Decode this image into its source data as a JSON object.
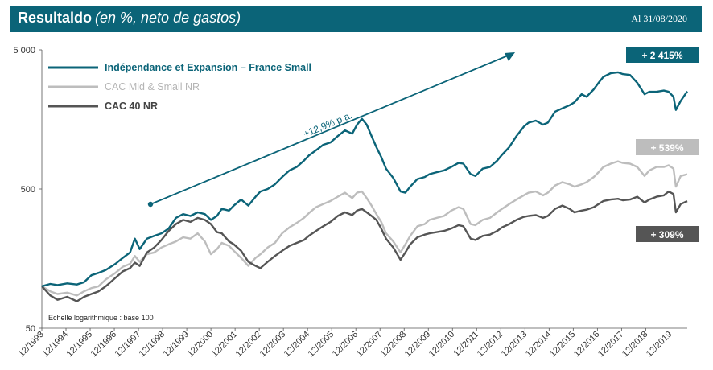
{
  "header": {
    "title": "Resultaldo",
    "subtitle": "(en %, neto de gastos)",
    "date": "Al 31/08/2020"
  },
  "colors": {
    "header_bg": "#0b6478",
    "fund": "#0b6478",
    "midsmall": "#bdbdbd",
    "cac40": "#555555"
  },
  "chart_data": {
    "type": "line",
    "y_scale": "log",
    "ylim": [
      50,
      5000
    ],
    "y_ticks": [
      {
        "value": 50,
        "label": "50"
      },
      {
        "value": 500,
        "label": "500"
      },
      {
        "value": 5000,
        "label": "5 000"
      }
    ],
    "x_tick_labels": [
      "12/1993",
      "12/1994",
      "12/1995",
      "12/1996",
      "12/1997",
      "12/1998",
      "12/1999",
      "12/2000",
      "12/2001",
      "12/2002",
      "12/2003",
      "12/2004",
      "12/2005",
      "12/2006",
      "12/2007",
      "12/2008",
      "12/2009",
      "12/2010",
      "12/2011",
      "12/2012",
      "12/2013",
      "12/2014",
      "12/2015",
      "12/2016",
      "12/2017",
      "12/2018",
      "12/2019"
    ],
    "x_range": [
      1993.95,
      2020.67
    ],
    "note": "Echelle logarithmique : base 100",
    "annotation": "+12,9% p.a.",
    "series": [
      {
        "name": "Indépendance et Expansion – France Small",
        "color": "#0b6478",
        "badge": "+ 2 415%",
        "points": [
          [
            1993.95,
            100
          ],
          [
            1994.3,
            104
          ],
          [
            1994.6,
            102
          ],
          [
            1995.0,
            105
          ],
          [
            1995.4,
            103
          ],
          [
            1995.7,
            107
          ],
          [
            1996.0,
            120
          ],
          [
            1996.3,
            125
          ],
          [
            1996.6,
            131
          ],
          [
            1997.0,
            145
          ],
          [
            1997.3,
            160
          ],
          [
            1997.6,
            175
          ],
          [
            1997.8,
            220
          ],
          [
            1998.0,
            185
          ],
          [
            1998.3,
            220
          ],
          [
            1998.6,
            230
          ],
          [
            1998.9,
            240
          ],
          [
            1999.2,
            260
          ],
          [
            1999.5,
            310
          ],
          [
            1999.8,
            330
          ],
          [
            2000.1,
            320
          ],
          [
            2000.4,
            340
          ],
          [
            2000.7,
            330
          ],
          [
            2000.95,
            300
          ],
          [
            2001.2,
            320
          ],
          [
            2001.4,
            360
          ],
          [
            2001.7,
            350
          ],
          [
            2001.9,
            380
          ],
          [
            2002.2,
            420
          ],
          [
            2002.5,
            380
          ],
          [
            2002.8,
            440
          ],
          [
            2003.0,
            480
          ],
          [
            2003.3,
            500
          ],
          [
            2003.6,
            540
          ],
          [
            2003.9,
            610
          ],
          [
            2004.2,
            680
          ],
          [
            2004.5,
            720
          ],
          [
            2004.8,
            800
          ],
          [
            2005.0,
            870
          ],
          [
            2005.3,
            950
          ],
          [
            2005.6,
            1040
          ],
          [
            2005.9,
            1080
          ],
          [
            2006.2,
            1200
          ],
          [
            2006.5,
            1320
          ],
          [
            2006.8,
            1250
          ],
          [
            2007.0,
            1450
          ],
          [
            2007.2,
            1600
          ],
          [
            2007.4,
            1450
          ],
          [
            2007.6,
            1200
          ],
          [
            2007.8,
            1000
          ],
          [
            2008.0,
            850
          ],
          [
            2008.2,
            700
          ],
          [
            2008.5,
            600
          ],
          [
            2008.8,
            480
          ],
          [
            2009.0,
            470
          ],
          [
            2009.2,
            520
          ],
          [
            2009.5,
            590
          ],
          [
            2009.8,
            610
          ],
          [
            2010.0,
            640
          ],
          [
            2010.3,
            660
          ],
          [
            2010.6,
            680
          ],
          [
            2010.9,
            720
          ],
          [
            2011.2,
            770
          ],
          [
            2011.4,
            760
          ],
          [
            2011.7,
            640
          ],
          [
            2011.9,
            620
          ],
          [
            2012.2,
            700
          ],
          [
            2012.5,
            720
          ],
          [
            2012.8,
            800
          ],
          [
            2013.0,
            880
          ],
          [
            2013.3,
            1000
          ],
          [
            2013.6,
            1200
          ],
          [
            2013.9,
            1400
          ],
          [
            2014.1,
            1500
          ],
          [
            2014.4,
            1550
          ],
          [
            2014.7,
            1450
          ],
          [
            2014.9,
            1500
          ],
          [
            2015.2,
            1800
          ],
          [
            2015.5,
            1900
          ],
          [
            2015.8,
            2000
          ],
          [
            2016.0,
            2100
          ],
          [
            2016.3,
            2400
          ],
          [
            2016.5,
            2300
          ],
          [
            2016.8,
            2600
          ],
          [
            2017.0,
            2900
          ],
          [
            2017.2,
            3200
          ],
          [
            2017.5,
            3400
          ],
          [
            2017.8,
            3450
          ],
          [
            2018.0,
            3350
          ],
          [
            2018.3,
            3300
          ],
          [
            2018.6,
            2900
          ],
          [
            2018.9,
            2400
          ],
          [
            2019.1,
            2500
          ],
          [
            2019.4,
            2500
          ],
          [
            2019.7,
            2550
          ],
          [
            2019.9,
            2500
          ],
          [
            2020.1,
            2300
          ],
          [
            2020.2,
            1850
          ],
          [
            2020.4,
            2150
          ],
          [
            2020.67,
            2515
          ]
        ]
      },
      {
        "name": "CAC Mid & Small NR",
        "color": "#bdbdbd",
        "badge": "+ 539%",
        "points": [
          [
            1993.95,
            100
          ],
          [
            1994.3,
            92
          ],
          [
            1994.6,
            88
          ],
          [
            1995.0,
            90
          ],
          [
            1995.4,
            86
          ],
          [
            1995.7,
            92
          ],
          [
            1996.0,
            97
          ],
          [
            1996.3,
            100
          ],
          [
            1996.6,
            112
          ],
          [
            1997.0,
            125
          ],
          [
            1997.3,
            138
          ],
          [
            1997.6,
            145
          ],
          [
            1997.8,
            165
          ],
          [
            1998.0,
            150
          ],
          [
            1998.3,
            170
          ],
          [
            1998.6,
            175
          ],
          [
            1998.9,
            190
          ],
          [
            1999.2,
            200
          ],
          [
            1999.5,
            210
          ],
          [
            1999.8,
            225
          ],
          [
            2000.1,
            220
          ],
          [
            2000.4,
            240
          ],
          [
            2000.7,
            210
          ],
          [
            2000.95,
            170
          ],
          [
            2001.2,
            185
          ],
          [
            2001.4,
            205
          ],
          [
            2001.7,
            195
          ],
          [
            2001.9,
            180
          ],
          [
            2002.2,
            160
          ],
          [
            2002.5,
            140
          ],
          [
            2002.8,
            160
          ],
          [
            2003.0,
            170
          ],
          [
            2003.3,
            190
          ],
          [
            2003.6,
            205
          ],
          [
            2003.9,
            240
          ],
          [
            2004.2,
            265
          ],
          [
            2004.5,
            285
          ],
          [
            2004.8,
            310
          ],
          [
            2005.0,
            335
          ],
          [
            2005.3,
            370
          ],
          [
            2005.6,
            390
          ],
          [
            2005.9,
            410
          ],
          [
            2006.2,
            440
          ],
          [
            2006.5,
            470
          ],
          [
            2006.8,
            430
          ],
          [
            2007.0,
            470
          ],
          [
            2007.2,
            480
          ],
          [
            2007.4,
            430
          ],
          [
            2007.6,
            380
          ],
          [
            2007.8,
            330
          ],
          [
            2008.0,
            290
          ],
          [
            2008.2,
            240
          ],
          [
            2008.5,
            210
          ],
          [
            2008.8,
            175
          ],
          [
            2009.0,
            200
          ],
          [
            2009.2,
            230
          ],
          [
            2009.5,
            270
          ],
          [
            2009.8,
            280
          ],
          [
            2010.0,
            300
          ],
          [
            2010.3,
            310
          ],
          [
            2010.6,
            320
          ],
          [
            2010.9,
            350
          ],
          [
            2011.2,
            370
          ],
          [
            2011.4,
            360
          ],
          [
            2011.7,
            280
          ],
          [
            2011.9,
            275
          ],
          [
            2012.2,
            300
          ],
          [
            2012.5,
            310
          ],
          [
            2012.8,
            340
          ],
          [
            2013.0,
            360
          ],
          [
            2013.3,
            390
          ],
          [
            2013.6,
            420
          ],
          [
            2013.9,
            450
          ],
          [
            2014.1,
            470
          ],
          [
            2014.4,
            480
          ],
          [
            2014.7,
            450
          ],
          [
            2014.9,
            470
          ],
          [
            2015.2,
            530
          ],
          [
            2015.5,
            560
          ],
          [
            2015.8,
            540
          ],
          [
            2016.0,
            520
          ],
          [
            2016.3,
            540
          ],
          [
            2016.5,
            560
          ],
          [
            2016.8,
            610
          ],
          [
            2017.0,
            660
          ],
          [
            2017.2,
            720
          ],
          [
            2017.5,
            760
          ],
          [
            2017.8,
            790
          ],
          [
            2018.0,
            770
          ],
          [
            2018.3,
            760
          ],
          [
            2018.6,
            720
          ],
          [
            2018.9,
            620
          ],
          [
            2019.1,
            680
          ],
          [
            2019.4,
            720
          ],
          [
            2019.7,
            720
          ],
          [
            2019.9,
            740
          ],
          [
            2020.1,
            700
          ],
          [
            2020.2,
            520
          ],
          [
            2020.4,
            620
          ],
          [
            2020.67,
            639
          ]
        ]
      },
      {
        "name": "CAC 40 NR",
        "color": "#555555",
        "badge": "+ 309%",
        "points": [
          [
            1993.95,
            100
          ],
          [
            1994.3,
            86
          ],
          [
            1994.6,
            80
          ],
          [
            1995.0,
            84
          ],
          [
            1995.4,
            78
          ],
          [
            1995.7,
            84
          ],
          [
            1996.0,
            88
          ],
          [
            1996.3,
            92
          ],
          [
            1996.6,
            100
          ],
          [
            1997.0,
            115
          ],
          [
            1997.3,
            128
          ],
          [
            1997.6,
            135
          ],
          [
            1997.8,
            148
          ],
          [
            1998.0,
            140
          ],
          [
            1998.3,
            175
          ],
          [
            1998.6,
            190
          ],
          [
            1998.9,
            215
          ],
          [
            1999.2,
            250
          ],
          [
            1999.5,
            280
          ],
          [
            1999.8,
            300
          ],
          [
            2000.1,
            290
          ],
          [
            2000.4,
            310
          ],
          [
            2000.7,
            300
          ],
          [
            2000.95,
            280
          ],
          [
            2001.2,
            245
          ],
          [
            2001.4,
            240
          ],
          [
            2001.7,
            210
          ],
          [
            2001.9,
            200
          ],
          [
            2002.2,
            180
          ],
          [
            2002.5,
            150
          ],
          [
            2002.8,
            140
          ],
          [
            2003.0,
            135
          ],
          [
            2003.3,
            150
          ],
          [
            2003.6,
            165
          ],
          [
            2003.9,
            180
          ],
          [
            2004.2,
            195
          ],
          [
            2004.5,
            205
          ],
          [
            2004.8,
            215
          ],
          [
            2005.0,
            230
          ],
          [
            2005.3,
            250
          ],
          [
            2005.6,
            270
          ],
          [
            2005.9,
            290
          ],
          [
            2006.2,
            320
          ],
          [
            2006.5,
            340
          ],
          [
            2006.8,
            325
          ],
          [
            2007.0,
            350
          ],
          [
            2007.2,
            360
          ],
          [
            2007.4,
            340
          ],
          [
            2007.6,
            320
          ],
          [
            2007.8,
            300
          ],
          [
            2008.0,
            260
          ],
          [
            2008.2,
            220
          ],
          [
            2008.5,
            190
          ],
          [
            2008.8,
            155
          ],
          [
            2009.0,
            175
          ],
          [
            2009.2,
            200
          ],
          [
            2009.5,
            225
          ],
          [
            2009.8,
            235
          ],
          [
            2010.0,
            240
          ],
          [
            2010.3,
            245
          ],
          [
            2010.6,
            250
          ],
          [
            2010.9,
            260
          ],
          [
            2011.2,
            275
          ],
          [
            2011.4,
            270
          ],
          [
            2011.7,
            220
          ],
          [
            2011.9,
            215
          ],
          [
            2012.2,
            230
          ],
          [
            2012.5,
            235
          ],
          [
            2012.8,
            250
          ],
          [
            2013.0,
            265
          ],
          [
            2013.3,
            280
          ],
          [
            2013.6,
            300
          ],
          [
            2013.9,
            315
          ],
          [
            2014.1,
            320
          ],
          [
            2014.4,
            325
          ],
          [
            2014.7,
            310
          ],
          [
            2014.9,
            320
          ],
          [
            2015.2,
            360
          ],
          [
            2015.5,
            380
          ],
          [
            2015.8,
            360
          ],
          [
            2016.0,
            340
          ],
          [
            2016.3,
            350
          ],
          [
            2016.5,
            355
          ],
          [
            2016.8,
            370
          ],
          [
            2017.0,
            390
          ],
          [
            2017.2,
            410
          ],
          [
            2017.5,
            420
          ],
          [
            2017.8,
            425
          ],
          [
            2018.0,
            415
          ],
          [
            2018.3,
            420
          ],
          [
            2018.6,
            440
          ],
          [
            2018.9,
            400
          ],
          [
            2019.1,
            420
          ],
          [
            2019.4,
            440
          ],
          [
            2019.7,
            450
          ],
          [
            2019.9,
            480
          ],
          [
            2020.1,
            460
          ],
          [
            2020.2,
            340
          ],
          [
            2020.4,
            390
          ],
          [
            2020.67,
            409
          ]
        ]
      }
    ]
  }
}
